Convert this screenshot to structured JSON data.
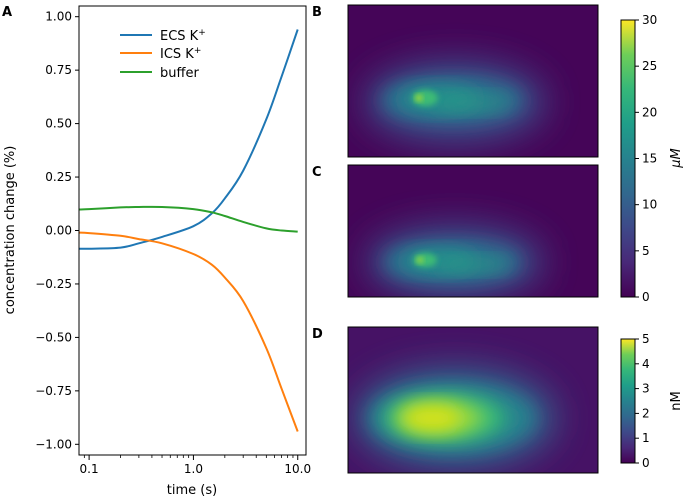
{
  "panel_labels": {
    "a": "A",
    "b": "B",
    "c": "C",
    "d": "D"
  },
  "chart_data": [
    {
      "type": "line",
      "panel": "A",
      "xlabel": "time (s)",
      "ylabel": "concentration change (%)",
      "xscale": "log",
      "xlim": [
        0.08,
        12
      ],
      "ylim": [
        -1.05,
        1.05
      ],
      "x_ticks": [
        0.1,
        1.0,
        10.0
      ],
      "x_tick_labels": [
        "0.1",
        "1.0",
        "10.0"
      ],
      "y_ticks": [
        1.0,
        0.75,
        0.5,
        0.25,
        0.0,
        -0.25,
        -0.5,
        -0.75,
        -1.0
      ],
      "y_tick_labels": [
        "1.00",
        "0.75",
        "0.50",
        "0.25",
        "0.00",
        "−0.25",
        "−0.50",
        "−0.75",
        "−1.00"
      ],
      "legend_position": "top-center",
      "series": [
        {
          "name": "ECS K",
          "superscript": "+",
          "color": "#1f77b4",
          "x": [
            0.08,
            0.1,
            0.2,
            0.3,
            0.5,
            1.0,
            1.5,
            2.0,
            3.0,
            5.0,
            7.0,
            10.0
          ],
          "y": [
            -0.085,
            -0.085,
            -0.08,
            -0.06,
            -0.03,
            0.02,
            0.08,
            0.15,
            0.28,
            0.52,
            0.72,
            0.94
          ]
        },
        {
          "name": "ICS K",
          "superscript": "+",
          "color": "#ff7f0e",
          "x": [
            0.08,
            0.1,
            0.2,
            0.3,
            0.5,
            1.0,
            1.5,
            2.0,
            3.0,
            5.0,
            7.0,
            10.0
          ],
          "y": [
            -0.01,
            -0.012,
            -0.025,
            -0.04,
            -0.06,
            -0.11,
            -0.16,
            -0.22,
            -0.33,
            -0.55,
            -0.74,
            -0.94
          ]
        },
        {
          "name": "buffer",
          "superscript": "",
          "color": "#2ca02c",
          "x": [
            0.08,
            0.1,
            0.2,
            0.3,
            0.5,
            1.0,
            1.5,
            2.0,
            3.0,
            5.0,
            7.0,
            10.0
          ],
          "y": [
            0.098,
            0.1,
            0.108,
            0.11,
            0.11,
            0.1,
            0.085,
            0.068,
            0.04,
            0.01,
            0.0,
            -0.005
          ]
        }
      ]
    },
    {
      "type": "heatmap",
      "panel": "B",
      "colormap": "viridis",
      "colorbar_label": "μM",
      "colorbar_range": [
        0,
        30
      ],
      "colorbar_ticks": [
        0,
        5,
        10,
        15,
        20,
        25,
        30
      ],
      "colorbar_tick_labels": [
        "0",
        "5",
        "10",
        "15",
        "20",
        "25",
        "30"
      ],
      "approx_peak_value": 22
    },
    {
      "type": "heatmap",
      "panel": "C",
      "colormap": "viridis",
      "colorbar_label": "μM",
      "colorbar_range": [
        0,
        30
      ],
      "approx_peak_value": 20
    },
    {
      "type": "heatmap",
      "panel": "D",
      "colormap": "viridis",
      "colorbar_label": "nM",
      "colorbar_range": [
        0,
        5
      ],
      "colorbar_ticks": [
        0,
        1,
        2,
        3,
        4,
        5
      ],
      "colorbar_tick_labels": [
        "0",
        "1",
        "2",
        "3",
        "4",
        "5"
      ],
      "approx_peak_value": 4.8
    }
  ]
}
